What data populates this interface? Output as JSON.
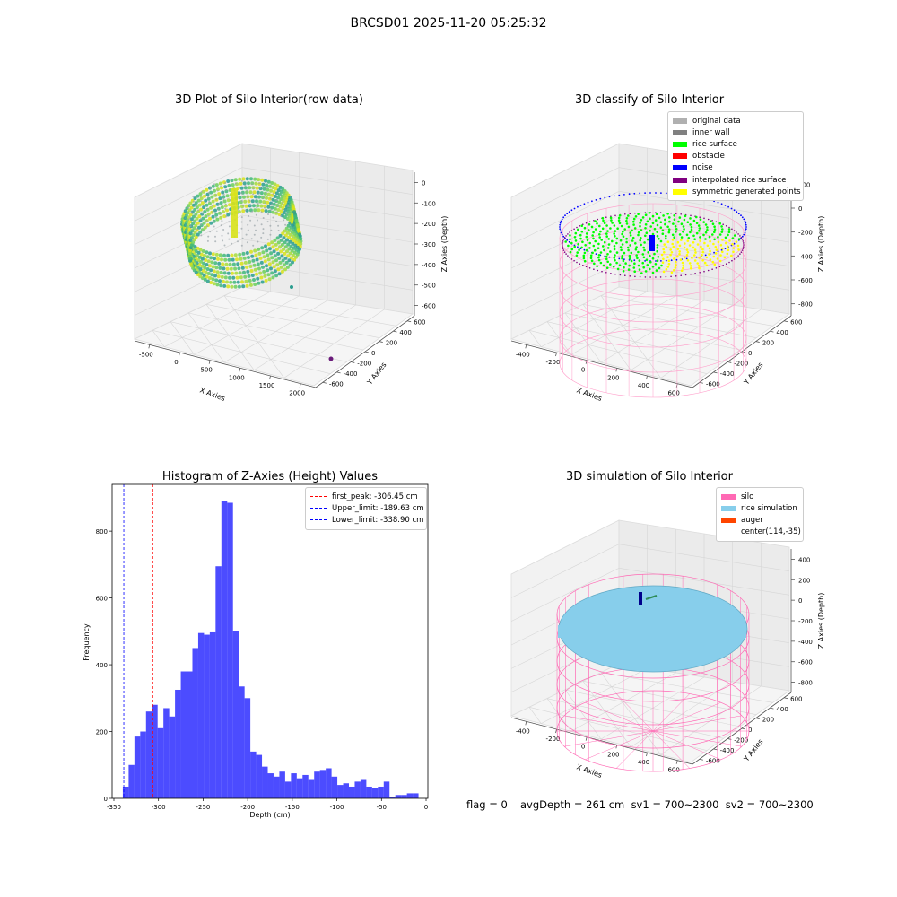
{
  "suptitle": "BRCSD01 2025-11-20 05:25:32",
  "panel1": {
    "title": "3D Plot of Silo Interior(row data)",
    "x_ticks": [
      "-500",
      "0",
      "500",
      "1000",
      "1500",
      "2000"
    ],
    "y_ticks": [
      "600",
      "400",
      "200",
      "0",
      "-200",
      "-400",
      "-600"
    ],
    "z_ticks": [
      "0",
      "-100",
      "-200",
      "-300",
      "-400",
      "-500",
      "-600"
    ],
    "xlabel": "X Axies",
    "ylabel": "Y Axies",
    "zlabel": "Z Axies (Depth)"
  },
  "panel2": {
    "title": "3D classify of Silo Interior",
    "legend": [
      {
        "label": "original data",
        "color": "#b0b0b0"
      },
      {
        "label": "inner wall",
        "color": "#808080"
      },
      {
        "label": "rice surface",
        "color": "#00ff00"
      },
      {
        "label": "obstacle",
        "color": "#ff0000"
      },
      {
        "label": "noise",
        "color": "#0000ff"
      },
      {
        "label": "interpolated rice surface",
        "color": "#800080"
      },
      {
        "label": "symmetric generated points",
        "color": "#ffff00"
      }
    ],
    "x_ticks": [
      "-400",
      "-200",
      "0",
      "200",
      "400",
      "600"
    ],
    "y_ticks": [
      "600",
      "400",
      "200",
      "0",
      "-200",
      "-400",
      "-600"
    ],
    "z_ticks": [
      "200",
      "0",
      "-200",
      "-400",
      "-600",
      "-800"
    ],
    "xlabel": "X Axies",
    "ylabel": "Y Axies",
    "zlabel": "Z Axies (Depth)"
  },
  "panel4": {
    "title": "3D simulation of Silo Interior",
    "legend": [
      {
        "label": "silo",
        "color": "#ff69b4"
      },
      {
        "label": "rice simulation",
        "color": "#87ceeb"
      },
      {
        "label": "auger",
        "color": "#ff4500"
      },
      {
        "label": "center(114,-35)",
        "color": ""
      }
    ],
    "x_ticks": [
      "-400",
      "-200",
      "0",
      "200",
      "400",
      "600"
    ],
    "y_ticks": [
      "600",
      "400",
      "200",
      "0",
      "-200",
      "-400",
      "-600"
    ],
    "z_ticks": [
      "400",
      "200",
      "0",
      "-200",
      "-400",
      "-600",
      "-800"
    ],
    "xlabel": "X Axies",
    "ylabel": "Y Axies",
    "zlabel": "Z Axies (Depth)"
  },
  "footer": {
    "flag": "flag = 0",
    "avg": "avgDepth = 261 cm  sv1 = 700~2300  sv2 = 700~2300"
  },
  "chart_data": [
    {
      "type": "bar",
      "title": "Histogram of Z-Axies (Height) Values",
      "xlabel": "Depth (cm)",
      "ylabel": "Frequency",
      "xlim": [
        -352,
        2
      ],
      "ylim": [
        0,
        940
      ],
      "x_ticks": [
        -350,
        -300,
        -250,
        -200,
        -150,
        -100,
        -50,
        0
      ],
      "y_ticks": [
        0,
        200,
        400,
        600,
        800
      ],
      "bin_start": -340,
      "bin_width": 6.5,
      "color": "#0000ff",
      "values": [
        35,
        100,
        185,
        200,
        260,
        280,
        210,
        270,
        245,
        325,
        380,
        380,
        450,
        495,
        490,
        497,
        695,
        890,
        885,
        500,
        335,
        300,
        140,
        130,
        95,
        75,
        65,
        80,
        50,
        75,
        60,
        70,
        55,
        80,
        85,
        90,
        65,
        40,
        45,
        35,
        50,
        55,
        35,
        30,
        35,
        50,
        5,
        10,
        10,
        15,
        15
      ],
      "lines": [
        {
          "label": "first_peak: -306.45 cm",
          "value": -306.45,
          "color": "#ff0000"
        },
        {
          "label": "Upper_limit: -189.63 cm",
          "value": -189.63,
          "color": "#0000ff"
        },
        {
          "label": "Lower_limit: -338.90 cm",
          "value": -338.9,
          "color": "#0000ff"
        }
      ]
    }
  ]
}
